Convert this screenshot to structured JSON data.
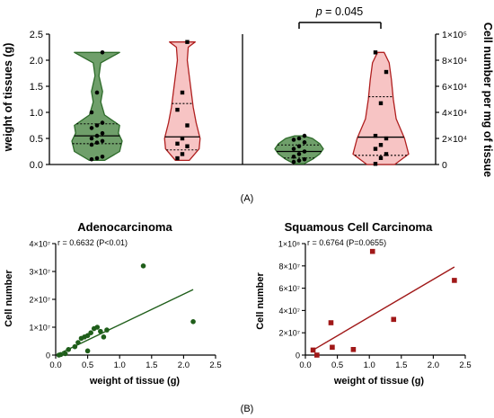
{
  "figure": {
    "panel_a_label": "(A)",
    "panel_b_label": "(B)"
  },
  "colors": {
    "adeno_fill": "#6f9f6a",
    "adeno_stroke": "#2d6b2a",
    "adeno_point": "#1f5e1a",
    "scc_fill": "#f7c4c4",
    "scc_stroke": "#b01f1f",
    "scc_point": "#a01818",
    "axis": "#000000"
  },
  "chart_data": [
    {
      "type": "violin",
      "panel": "A",
      "ylabel_left": "weight of tissues (g)",
      "ylabel_right": "Cell number per mg of tissue",
      "left_ylim": [
        0,
        2.5
      ],
      "left_yticks": [
        "0.0",
        "0.5",
        "1.0",
        "1.5",
        "2.0",
        "2.5"
      ],
      "right_ylim": [
        0,
        100000
      ],
      "right_yticks": [
        "0",
        "2×10⁴",
        "4×10⁴",
        "6×10⁴",
        "8×10⁴",
        "1×10⁵"
      ],
      "annotation": "p = 0.045",
      "groups": [
        {
          "axis": "left",
          "color": "green",
          "median": 0.55,
          "q1": 0.4,
          "q3": 0.78,
          "values": [
            0.1,
            0.12,
            0.15,
            0.38,
            0.42,
            0.45,
            0.5,
            0.55,
            0.6,
            0.7,
            0.75,
            0.8,
            1.0,
            1.38,
            2.15
          ],
          "shape": [
            [
              0.08,
              0.3
            ],
            [
              0.25,
              0.9
            ],
            [
              0.45,
              1.0
            ],
            [
              0.6,
              0.85
            ],
            [
              0.75,
              0.9
            ],
            [
              0.95,
              0.3
            ],
            [
              1.2,
              0.15
            ],
            [
              1.4,
              0.22
            ],
            [
              1.7,
              0.08
            ],
            [
              1.95,
              0.15
            ],
            [
              2.15,
              0.9
            ]
          ]
        },
        {
          "axis": "left",
          "color": "red",
          "median": 0.53,
          "q1": 0.28,
          "q3": 1.17,
          "values": [
            0.12,
            0.2,
            0.35,
            0.4,
            0.5,
            0.75,
            1.05,
            1.38,
            2.35
          ],
          "shape": [
            [
              0.08,
              0.35
            ],
            [
              0.3,
              0.85
            ],
            [
              0.5,
              0.9
            ],
            [
              0.8,
              0.7
            ],
            [
              1.1,
              0.55
            ],
            [
              1.4,
              0.45
            ],
            [
              1.7,
              0.35
            ],
            [
              2.0,
              0.25
            ],
            [
              2.25,
              0.3
            ],
            [
              2.35,
              0.65
            ]
          ]
        },
        {
          "axis": "right",
          "color": "green",
          "median": 10000,
          "q1": 5000,
          "q3": 15000,
          "values": [
            2000,
            3000,
            4000,
            6000,
            8000,
            10000,
            12000,
            14000,
            17000,
            19000,
            20000,
            22000
          ],
          "shape": [
            [
              500,
              0.2
            ],
            [
              4000,
              0.55
            ],
            [
              8000,
              0.85
            ],
            [
              12000,
              1.0
            ],
            [
              16000,
              0.85
            ],
            [
              20000,
              0.55
            ],
            [
              22000,
              0.18
            ]
          ]
        },
        {
          "axis": "right",
          "color": "red",
          "median": 21000,
          "q1": 7000,
          "q3": 52000,
          "values": [
            500,
            5000,
            8000,
            12000,
            15000,
            20000,
            22000,
            47000,
            71000,
            86000
          ],
          "shape": [
            [
              0,
              0.5
            ],
            [
              8000,
              1.0
            ],
            [
              20000,
              0.85
            ],
            [
              35000,
              0.55
            ],
            [
              50000,
              0.45
            ],
            [
              65000,
              0.38
            ],
            [
              78000,
              0.3
            ],
            [
              86000,
              0.12
            ]
          ]
        }
      ]
    },
    {
      "type": "scatter",
      "panel": "B",
      "title": "Adenocarcinoma",
      "xlabel": "weight of tissue (g)",
      "ylabel": "Cell number",
      "annotation": "r = 0.6632 (P<0.01)",
      "xlim": [
        0,
        2.5
      ],
      "ylim": [
        0,
        40000000
      ],
      "xticks": [
        "0.0",
        "0.5",
        "1.0",
        "1.5",
        "2.0",
        "2.5"
      ],
      "yticks": [
        "0",
        "1×10⁷",
        "2×10⁷",
        "3×10⁷",
        "4×10⁷"
      ],
      "points": [
        [
          0.05,
          0
        ],
        [
          0.08,
          200000
        ],
        [
          0.15,
          500000
        ],
        [
          0.2,
          2000000
        ],
        [
          0.3,
          3000000
        ],
        [
          0.35,
          4500000
        ],
        [
          0.4,
          6000000
        ],
        [
          0.45,
          6500000
        ],
        [
          0.5,
          7000000
        ],
        [
          0.55,
          8000000
        ],
        [
          0.6,
          9500000
        ],
        [
          0.65,
          10000000
        ],
        [
          0.7,
          8500000
        ],
        [
          0.75,
          6500000
        ],
        [
          1.37,
          32000000
        ],
        [
          2.15,
          12000000
        ],
        [
          0.5,
          1500000
        ],
        [
          0.8,
          9000000
        ]
      ],
      "fit": [
        [
          0.1,
          1000000
        ],
        [
          2.15,
          23500000
        ]
      ]
    },
    {
      "type": "scatter",
      "panel": "B",
      "title": "Squamous Cell Carcinoma",
      "xlabel": "weight of tissue (g)",
      "ylabel": "Cell number",
      "annotation": "r = 0.6764 (P=0.0655)",
      "xlim": [
        0,
        2.5
      ],
      "ylim": [
        0,
        100000000
      ],
      "xticks": [
        "0.0",
        "0.5",
        "1.0",
        "1.5",
        "2.0",
        "2.5"
      ],
      "yticks": [
        "0",
        "2×10⁷",
        "4×10⁷",
        "6×10⁷",
        "8×10⁷",
        "1×10⁸"
      ],
      "points": [
        [
          0.12,
          4500000
        ],
        [
          0.18,
          0
        ],
        [
          0.4,
          29000000
        ],
        [
          0.42,
          7000000
        ],
        [
          0.75,
          5000000
        ],
        [
          1.05,
          93000000
        ],
        [
          1.38,
          32000000
        ],
        [
          2.33,
          67000000
        ]
      ],
      "fit": [
        [
          0.12,
          4500000
        ],
        [
          2.33,
          79000000
        ]
      ]
    }
  ]
}
